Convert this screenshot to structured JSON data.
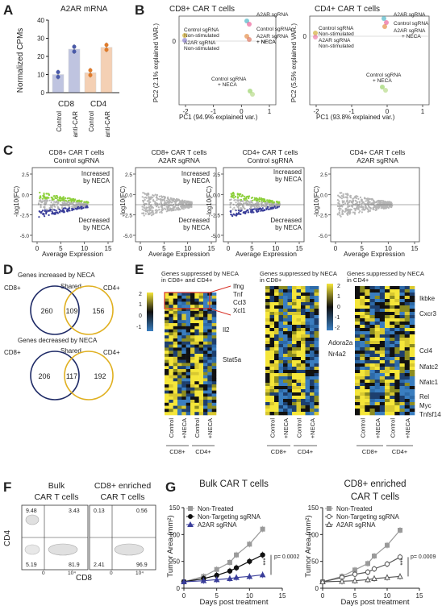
{
  "panels": {
    "A": "A",
    "B": "B",
    "C": "C",
    "D": "D",
    "E": "E",
    "F": "F",
    "G": "G"
  },
  "panel_a": {
    "title": "A2AR mRNA",
    "ylabel": "Normalized CPMs",
    "groups": [
      {
        "name": "CD8",
        "bars": [
          {
            "label": "Control",
            "value": 10,
            "color": "#4a5aa8"
          },
          {
            "label": "anti-CAR",
            "value": 24,
            "color": "#4a5aa8"
          }
        ]
      },
      {
        "name": "CD4",
        "bars": [
          {
            "label": "Control",
            "value": 11,
            "color": "#e07b2a"
          },
          {
            "label": "anti-CAR",
            "value": 25,
            "color": "#e07b2a"
          }
        ]
      }
    ],
    "yticks": [
      "0",
      "10",
      "20",
      "30",
      "40"
    ]
  },
  "panel_b": {
    "plots": [
      {
        "title": "CD8+ CAR T cells",
        "ylabel": "PC2 (2.1% explained VAR.)",
        "xlabel": "PC1 (94.9% explained var.)",
        "labels": [
          "A2AR sgRNA",
          "Control sgRNA",
          "Non-stimulated",
          "A2AR sgRNA",
          "Non-stimulated",
          "Control sgRNA",
          "+ NECA",
          "A2AR sgRNA",
          "+ NECA",
          "Control sgRNA",
          "+ NECA"
        ]
      },
      {
        "title": "CD4+ CAR T cells",
        "ylabel": "PC2 (5.5% explained VAR.)",
        "xlabel": "PC1 (93.8% explained var.)",
        "labels": [
          "A2AR sgRNA",
          "Control sgRNA",
          "Control sgRNA",
          "Non-stimulated",
          "A2AR sgRNA",
          "Non-stimulated",
          "A2AR sgRNA",
          "+ NECA",
          "Control sgRNA",
          "+ NECA"
        ]
      }
    ],
    "xticks": [
      "-2",
      "-1",
      "0",
      "1"
    ],
    "yticks": [
      "0"
    ]
  },
  "panel_c": {
    "plots": [
      {
        "title1": "CD8+ CAR T cells",
        "title2": "Control sgRNA",
        "inc": "Increased",
        "inc2": "by NECA",
        "dec": "Decreased",
        "dec2": "by NECA",
        "colored": true
      },
      {
        "title1": "CD8+ CAR T cells",
        "title2": "A2AR sgRNA",
        "inc": "Increased",
        "inc2": "by NECA",
        "dec": "Decreased",
        "dec2": "by NECA",
        "colored": false
      },
      {
        "title1": "CD4+ CAR T cells",
        "title2": "Control sgRNA",
        "inc": "Increased",
        "inc2": "by NECA",
        "dec": "Decreased",
        "dec2": "by NECA",
        "colored": true
      },
      {
        "title1": "CD4+ CAR T cells",
        "title2": "A2AR sgRNA",
        "inc": "",
        "inc2": "",
        "dec": "",
        "dec2": "",
        "colored": false
      }
    ],
    "ylabel": "-log10(FC)",
    "xlabel": "Average Expression",
    "xticks": [
      "0",
      "5",
      "10",
      "15"
    ],
    "yticks": [
      "2.5",
      "0.0",
      "-2.5",
      "-5.0"
    ]
  },
  "panel_d": {
    "inc_title": "Genes increased by NECA",
    "dec_title": "Genes decreased by NECA",
    "cd8": "CD8+",
    "cd4": "CD4+",
    "shared": "Shared",
    "inc": {
      "left": "260",
      "mid": "109",
      "right": "156"
    },
    "dec": {
      "left": "206",
      "mid": "117",
      "right": "192"
    }
  },
  "panel_e": {
    "h1_title": "Genes suppressed by NECA",
    "h1_sub": "in CD8+ and CD4+",
    "h2_title": "Genes suppressed by NECA",
    "h2_sub": "in CD8+",
    "h3_title": "Genes suppressed by NECA",
    "h3_sub": "in CD4+",
    "scale1": [
      "2",
      "1",
      "0",
      "-1"
    ],
    "scale2": [
      "2",
      "1",
      "0",
      "-1",
      "-2"
    ],
    "genes1": [
      "Ifng",
      "Tnf",
      "Ccl3",
      "Xcl1",
      "Il2",
      "Stat5a"
    ],
    "genes2": [
      "Adora2a",
      "Nr4a2"
    ],
    "genes3": [
      "Ikbke",
      "Cxcr3",
      "Ccl4",
      "Nfatc2",
      "Nfatc1",
      "Rel",
      "Myc",
      "Tnfsf14"
    ],
    "cols": [
      "Control",
      "+NECA",
      "Control",
      "+NECA"
    ],
    "groups": [
      "CD8+",
      "CD4+"
    ]
  },
  "panel_f": {
    "t1a": "Bulk",
    "t1b": "CAR T cells",
    "t2a": "CD8+ enriched",
    "t2b": "CAR T cells",
    "ylabel": "CD4",
    "xlabel": "CD8",
    "q1": [
      "9.48",
      "3.43",
      "5.19",
      "81.9"
    ],
    "q2": [
      "0.13",
      "0.56",
      "2.41",
      "96.9"
    ],
    "ticks": [
      "0",
      "10⁴",
      "10⁴"
    ]
  },
  "panel_g": {
    "titles": [
      "Bulk CAR T cells",
      "CD8+ enriched",
      "CAR T cells"
    ],
    "ylabel": "Tumor Area (mm²)",
    "xlabel": "Days post treatment",
    "legend1": [
      "Non-Treated",
      "Non-Targeting sgRNA",
      "A2AR sgRNA"
    ],
    "legend2": [
      "Non-Treated",
      "Non-Targeting sgRNA",
      "A2AR sgRNA"
    ],
    "p1": "p= 0.0002",
    "p2": "p= 0.0009",
    "stars": "***",
    "xticks": [
      "0",
      "5",
      "10",
      "15"
    ],
    "yticks": [
      "0",
      "50",
      "100",
      "150"
    ]
  },
  "chart_data": [
    {
      "type": "bar",
      "title": "A2AR mRNA",
      "ylabel": "Normalized CPMs",
      "categories": [
        "CD8 Control",
        "CD8 anti-CAR",
        "CD4 Control",
        "CD4 anti-CAR"
      ],
      "values": [
        10,
        24,
        11,
        25
      ],
      "ylim": [
        0,
        40
      ]
    },
    {
      "type": "line",
      "title": "Bulk CAR T cells",
      "xlabel": "Days post treatment",
      "ylabel": "Tumor Area (mm²)",
      "ylim": [
        0,
        150
      ],
      "x": [
        0,
        3,
        5,
        7,
        8,
        10,
        12
      ],
      "series": [
        {
          "name": "Non-Treated",
          "values": [
            12,
            22,
            35,
            48,
            62,
            82,
            110
          ]
        },
        {
          "name": "Non-Targeting sgRNA",
          "values": [
            12,
            18,
            24,
            32,
            38,
            50,
            62
          ]
        },
        {
          "name": "A2AR sgRNA",
          "values": [
            12,
            14,
            16,
            18,
            20,
            22,
            25
          ]
        }
      ]
    },
    {
      "type": "line",
      "title": "CD8+ enriched CAR T cells",
      "xlabel": "Days post treatment",
      "ylabel": "Tumor Area (mm²)",
      "ylim": [
        0,
        150
      ],
      "x": [
        0,
        3,
        5,
        7,
        8,
        10,
        12
      ],
      "series": [
        {
          "name": "Non-Treated",
          "values": [
            12,
            22,
            34,
            46,
            60,
            80,
            108
          ]
        },
        {
          "name": "Non-Targeting sgRNA",
          "values": [
            12,
            20,
            26,
            30,
            36,
            45,
            58
          ]
        },
        {
          "name": "A2AR sgRNA",
          "values": [
            12,
            13,
            14,
            16,
            18,
            20,
            22
          ]
        }
      ]
    }
  ]
}
